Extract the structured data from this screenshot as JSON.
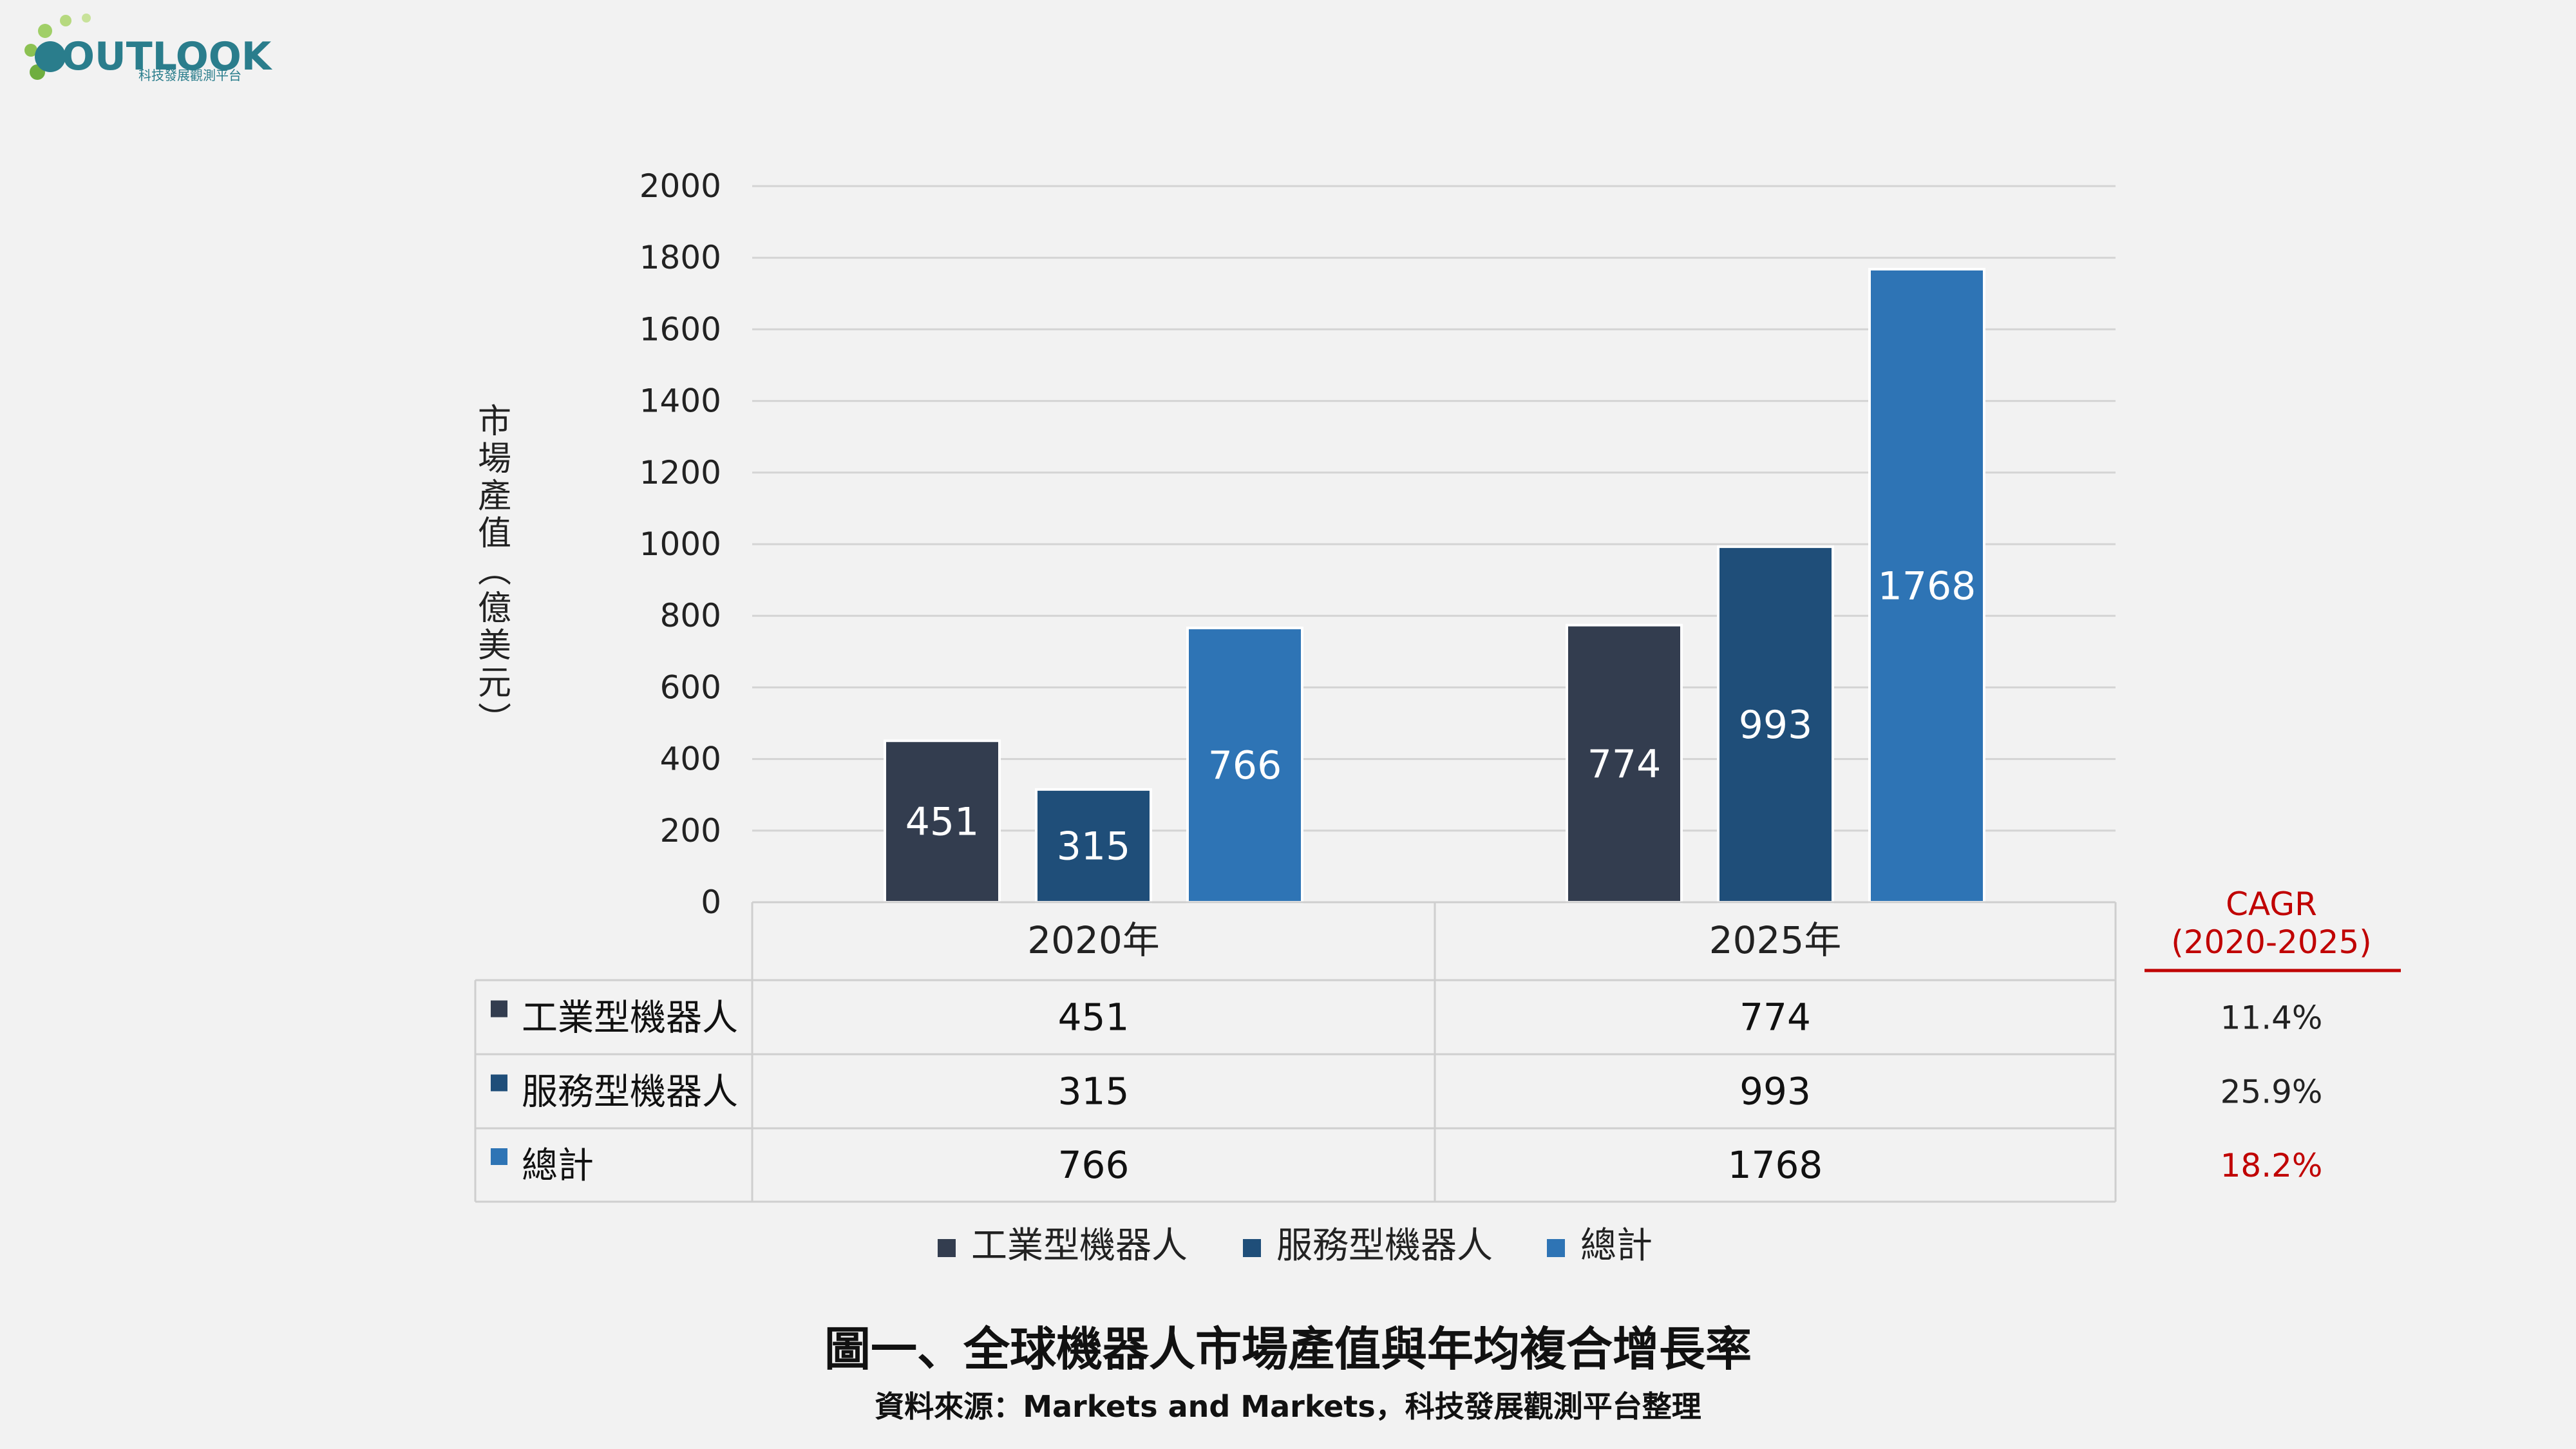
{
  "logo": {
    "text": "OUTLOOK",
    "subtitle": "科技發展觀測平台"
  },
  "chart_data": {
    "type": "bar",
    "categories": [
      "2020年",
      "2025年"
    ],
    "series": [
      {
        "name": "工業型機器人",
        "values": [
          451,
          774
        ],
        "color": "#333d4f"
      },
      {
        "name": "服務型機器人",
        "values": [
          315,
          993
        ],
        "color": "#1f4e79"
      },
      {
        "name": "總計",
        "values": [
          766,
          1768
        ],
        "color": "#2e74b5"
      }
    ],
    "ylabel": "市場產值(億美元)",
    "ylim": [
      0,
      2000
    ],
    "yticks": [
      0,
      200,
      400,
      600,
      800,
      1000,
      1200,
      1400,
      1600,
      1800,
      2000
    ],
    "grid": true,
    "legend_position": "bottom",
    "title": "圖一、全球機器人市場產值與年均複合增長率",
    "source": "資料來源：Markets and Markets，科技發展觀測平台整理"
  },
  "cagr": {
    "header_line1": "CAGR",
    "header_line2": "(2020-2025)",
    "values": [
      "11.4%",
      "25.9%",
      "18.2%"
    ],
    "highlight_color": "#c00000"
  }
}
